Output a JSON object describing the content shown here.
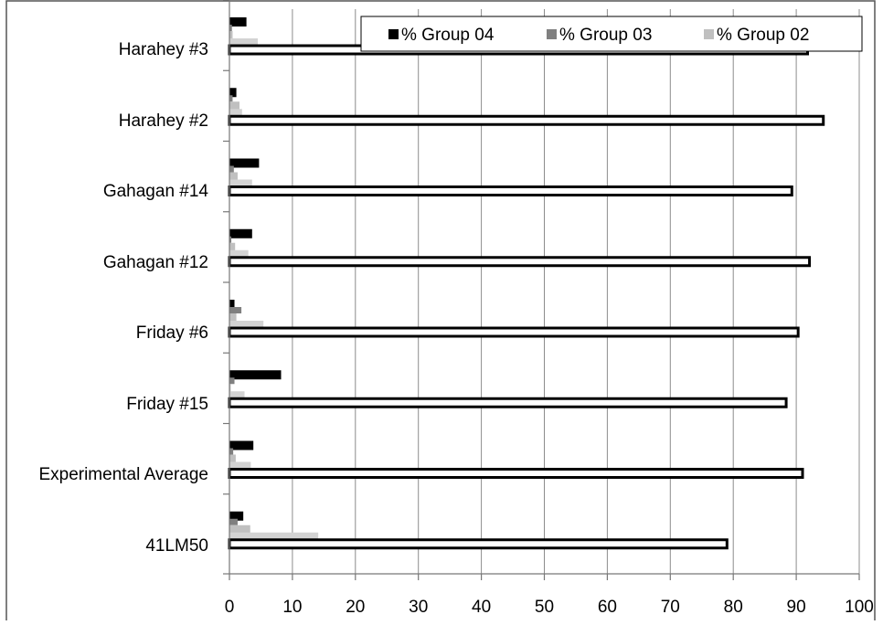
{
  "chart_data": {
    "type": "bar",
    "orientation": "horizontal",
    "categories": [
      "Harahey #3",
      "Harahey #2",
      "Gahagan #14",
      "Gahagan #12",
      "Friday #6",
      "Friday #15",
      "Experimental Average",
      "41LM50"
    ],
    "series": [
      {
        "name": "% Group 04",
        "color": "#000000",
        "values": [
          2.7,
          1.1,
          4.7,
          3.6,
          0.8,
          8.2,
          3.8,
          2.2
        ]
      },
      {
        "name": "% Group 03",
        "color": "#808080",
        "values": [
          0.4,
          0.5,
          0.7,
          0.3,
          1.9,
          0.8,
          0.6,
          1.3
        ]
      },
      {
        "name": "% Group 02",
        "color": "#c0c0c0",
        "values": [
          0.5,
          1.6,
          1.3,
          0.9,
          1.1,
          0.2,
          1.0,
          3.3
        ]
      },
      {
        "name": "",
        "color": "#d3d3d3",
        "values": [
          4.5,
          2.0,
          3.6,
          3.0,
          5.4,
          2.4,
          3.4,
          14.1
        ]
      },
      {
        "name": "",
        "color": "#ffffff",
        "stroke": "#000000",
        "values": [
          91.8,
          94.3,
          89.3,
          92.1,
          90.3,
          88.4,
          91.0,
          79.0
        ]
      }
    ],
    "xlim": [
      0,
      100
    ],
    "xticks": [
      "0",
      "10",
      "20",
      "30",
      "40",
      "50",
      "60",
      "70",
      "80",
      "90",
      "100"
    ],
    "grid": true,
    "legend": {
      "placement": "top-right",
      "entries": [
        "% Group 04",
        "% Group 03",
        "% Group 02"
      ]
    }
  }
}
